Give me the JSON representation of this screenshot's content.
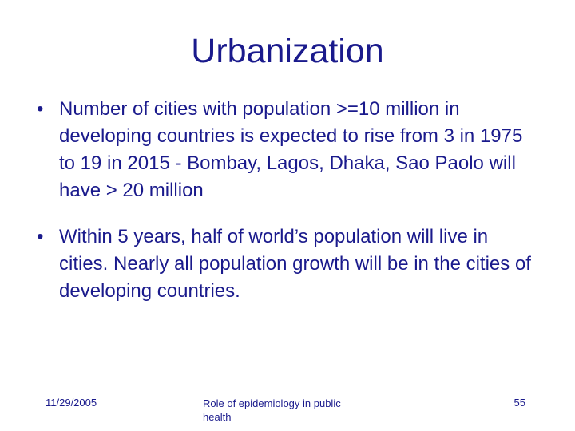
{
  "slide": {
    "title": "Urbanization",
    "bullet_marker": "•",
    "bullets": [
      "Number of cities with population >=10 million in developing countries is expected to rise from 3 in 1975 to 19 in 2015 - Bombay, Lagos, Dhaka, Sao Paolo will have > 20 million",
      "Within 5 years, half of world’s population will live in cities.  Nearly all population growth will be in the cities of developing countries."
    ]
  },
  "footer": {
    "date": "11/29/2005",
    "title": "Role of epidemiology in public health",
    "page_number": "55"
  },
  "colors": {
    "text": "#1a1a8c",
    "background": "#ffffff"
  }
}
